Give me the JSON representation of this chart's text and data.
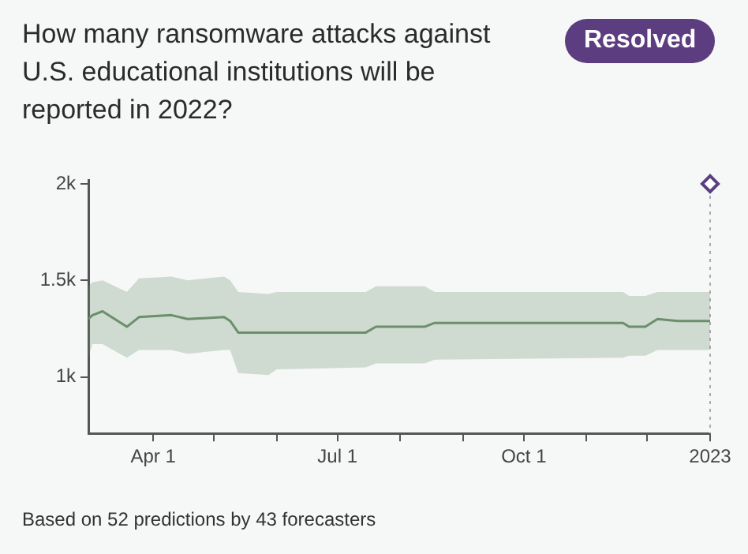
{
  "chart_data": {
    "type": "line",
    "title": "How many ransomware attacks against U.S. educational institutions will be reported in 2022?",
    "annotations": [
      "Resolved",
      "Based on 52 predictions by 43 forecasters"
    ],
    "xlim": [
      "2022-02-28",
      "2023-01-01"
    ],
    "xticks": [
      {
        "value": "2022-04-01",
        "label": "Apr 1"
      },
      {
        "value": "2022-05-01",
        "label": null
      },
      {
        "value": "2022-06-01",
        "label": null
      },
      {
        "value": "2022-07-01",
        "label": "Jul 1"
      },
      {
        "value": "2022-08-01",
        "label": null
      },
      {
        "value": "2022-09-01",
        "label": null
      },
      {
        "value": "2022-10-01",
        "label": "Oct 1"
      },
      {
        "value": "2022-11-01",
        "label": null
      },
      {
        "value": "2022-12-01",
        "label": null
      },
      {
        "value": "2023-01-01",
        "label": "2023"
      }
    ],
    "ylim": [
      708,
      2020
    ],
    "yticks": [
      {
        "value": 1000,
        "label": "1k"
      },
      {
        "value": 1500,
        "label": "1.5k"
      },
      {
        "value": 2000,
        "label": "2k"
      }
    ],
    "grid": false,
    "ref_lines": [
      {
        "axis": "x",
        "value": "2023-01-01",
        "color": "#aaaaaa",
        "line_style": "dotted"
      }
    ],
    "series": [
      {
        "color": "#6b8f6b",
        "marker": "none",
        "x": [
          "2022-02-28",
          "2022-03-02",
          "2022-03-07",
          "2022-03-19",
          "2022-03-25",
          "2022-04-10",
          "2022-04-18",
          "2022-05-06",
          "2022-05-09",
          "2022-05-13",
          "2022-05-28",
          "2022-06-01",
          "2022-07-15",
          "2022-07-20",
          "2022-08-13",
          "2022-08-18",
          "2022-11-19",
          "2022-11-22",
          "2022-11-30",
          "2022-12-06",
          "2022-12-16",
          "2023-01-01"
        ],
        "values": [
          1300,
          1320,
          1340,
          1260,
          1310,
          1320,
          1300,
          1310,
          1290,
          1230,
          1230,
          1230,
          1230,
          1260,
          1260,
          1280,
          1280,
          1260,
          1260,
          1300,
          1290,
          1290
        ],
        "lower": [
          1100,
          1170,
          1170,
          1100,
          1140,
          1140,
          1120,
          1140,
          1140,
          1020,
          1010,
          1040,
          1050,
          1070,
          1070,
          1090,
          1100,
          1110,
          1110,
          1140,
          1140,
          1140
        ],
        "upper": [
          1470,
          1490,
          1500,
          1440,
          1510,
          1520,
          1500,
          1520,
          1500,
          1440,
          1430,
          1440,
          1440,
          1470,
          1470,
          1440,
          1440,
          1420,
          1420,
          1440,
          1440,
          1440
        ]
      },
      {
        "type": "scatter",
        "color": "#5b3f7f",
        "marker": "diamond",
        "x": [
          "2023-01-01"
        ],
        "values": [
          2000
        ]
      }
    ]
  }
}
